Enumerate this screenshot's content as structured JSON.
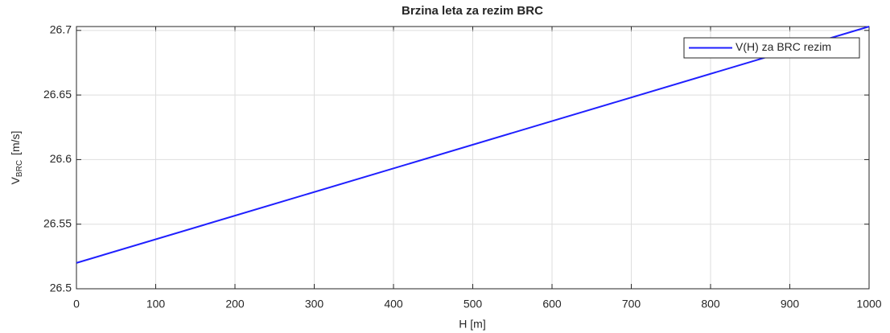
{
  "chart_data": {
    "type": "line",
    "title": "Brzina leta za rezim BRC",
    "xlabel": "H [m]",
    "ylabel": {
      "main": "V",
      "sub": "BRC",
      "unit": "[m/s]"
    },
    "x": [
      0,
      1000
    ],
    "series": [
      {
        "name": "V(H) za BRC rezim",
        "color": "#1f1fff",
        "values": [
          26.52,
          26.703
        ]
      }
    ],
    "xlim": [
      0,
      1000
    ],
    "xticks": [
      0,
      100,
      200,
      300,
      400,
      500,
      600,
      700,
      800,
      900,
      1000
    ],
    "ylim": [
      26.5,
      26.703
    ],
    "yticks": [
      26.5,
      26.55,
      26.6,
      26.65,
      26.7
    ],
    "grid": true,
    "legend": "top-right"
  }
}
